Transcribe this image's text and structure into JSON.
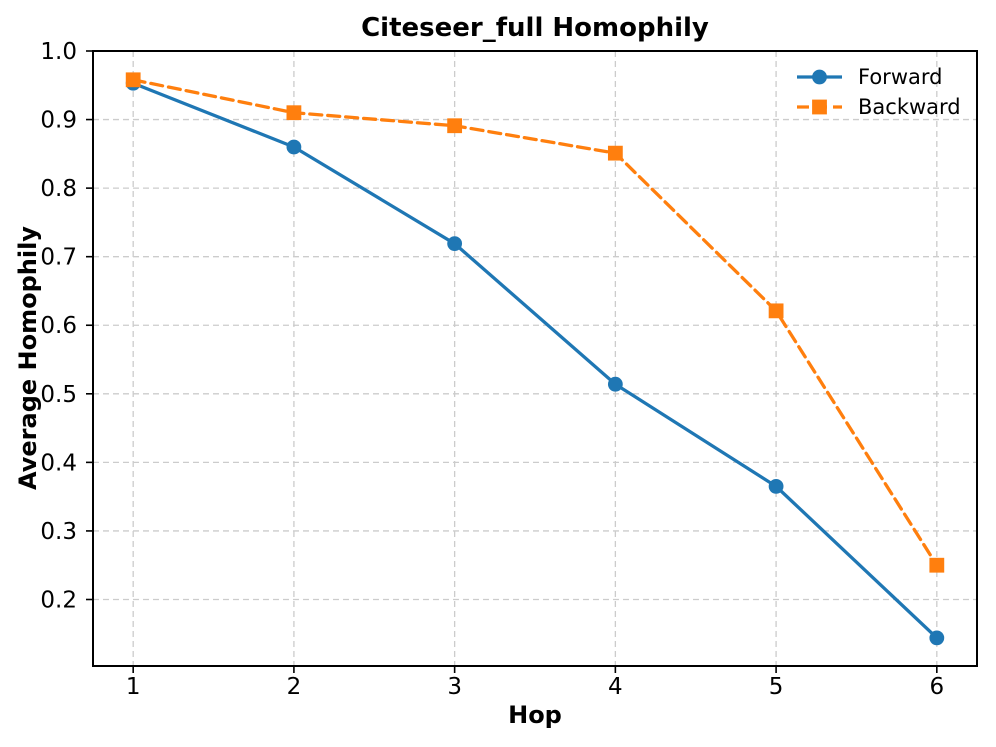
{
  "chart_data": {
    "type": "line",
    "title": "Citeseer_full Homophily",
    "xlabel": "Hop",
    "ylabel": "Average Homophily",
    "x": [
      1,
      2,
      3,
      4,
      5,
      6
    ],
    "series": [
      {
        "name": "Forward",
        "values": [
          0.953,
          0.86,
          0.719,
          0.514,
          0.365,
          0.144
        ],
        "color": "#1f77b4",
        "linestyle": "solid",
        "marker": "circle"
      },
      {
        "name": "Backward",
        "values": [
          0.958,
          0.91,
          0.891,
          0.851,
          0.621,
          0.25
        ],
        "color": "#ff7f0e",
        "linestyle": "dashed",
        "marker": "square"
      }
    ],
    "xlim": [
      0.75,
      6.25
    ],
    "ylim": [
      0.103,
      1.0
    ],
    "xticks": [
      1,
      2,
      3,
      4,
      5,
      6
    ],
    "yticks": [
      0.2,
      0.3,
      0.4,
      0.5,
      0.6,
      0.7,
      0.8,
      0.9,
      1.0
    ],
    "grid": true,
    "grid_on": "both",
    "grid_color": "#cccccc",
    "axis_color": "#000000",
    "tick_label_color": "#000000",
    "background_color": "#ffffff",
    "legend": {
      "position": "upper-right",
      "frame": false,
      "entries": [
        "Forward",
        "Backward"
      ]
    }
  }
}
